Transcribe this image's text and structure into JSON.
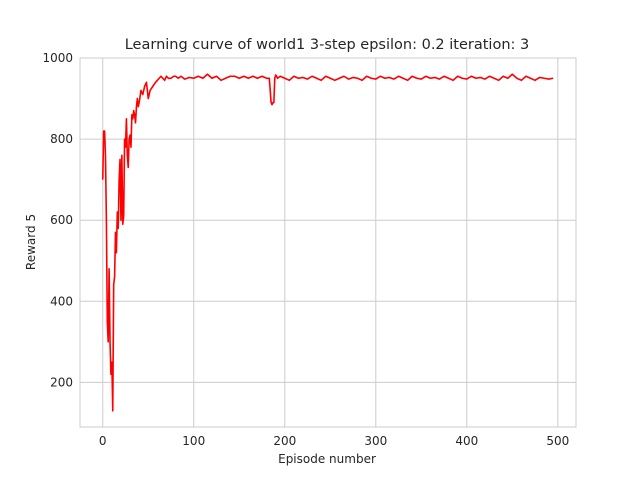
{
  "chart_data": {
    "type": "line",
    "title": "Learning curve of world1 3-step epsilon: 0.2 iteration: 3",
    "xlabel": "Episode number",
    "ylabel": "Reward 5",
    "xlim": [
      -25,
      520
    ],
    "ylim": [
      90,
      1000
    ],
    "xticks": [
      0,
      100,
      200,
      300,
      400,
      500
    ],
    "yticks": [
      200,
      400,
      600,
      800,
      1000
    ],
    "grid": true,
    "series": [
      {
        "color": "#ff0000",
        "x": [
          0,
          1,
          2,
          3,
          4,
          5,
          6,
          7,
          8,
          9,
          10,
          11,
          12,
          13,
          14,
          15,
          16,
          17,
          18,
          19,
          20,
          21,
          22,
          23,
          24,
          25,
          26,
          27,
          28,
          29,
          30,
          31,
          32,
          33,
          34,
          35,
          36,
          37,
          38,
          39,
          40,
          42,
          44,
          46,
          48,
          50,
          52,
          55,
          58,
          60,
          62,
          64,
          66,
          68,
          70,
          72,
          75,
          78,
          80,
          83,
          86,
          90,
          95,
          100,
          105,
          110,
          115,
          120,
          125,
          130,
          135,
          140,
          145,
          150,
          155,
          160,
          165,
          170,
          175,
          180,
          183,
          185,
          186,
          187,
          188,
          189,
          190,
          191,
          192,
          195,
          200,
          205,
          210,
          215,
          220,
          225,
          230,
          235,
          240,
          245,
          250,
          255,
          260,
          265,
          270,
          275,
          280,
          285,
          290,
          295,
          300,
          305,
          310,
          315,
          320,
          325,
          330,
          335,
          340,
          345,
          350,
          355,
          360,
          365,
          370,
          375,
          380,
          385,
          390,
          395,
          400,
          405,
          410,
          415,
          420,
          425,
          430,
          435,
          440,
          445,
          450,
          455,
          460,
          465,
          470,
          475,
          480,
          485,
          490,
          495
        ],
        "y": [
          700,
          820,
          820,
          760,
          600,
          350,
          300,
          480,
          300,
          220,
          250,
          130,
          440,
          460,
          570,
          520,
          620,
          580,
          700,
          750,
          600,
          760,
          590,
          610,
          800,
          780,
          850,
          760,
          730,
          800,
          810,
          780,
          860,
          850,
          870,
          860,
          840,
          880,
          900,
          880,
          890,
          920,
          910,
          930,
          940,
          900,
          920,
          930,
          940,
          945,
          950,
          955,
          950,
          945,
          955,
          950,
          950,
          955,
          955,
          950,
          955,
          948,
          952,
          950,
          955,
          950,
          960,
          950,
          955,
          945,
          950,
          955,
          955,
          950,
          955,
          950,
          955,
          950,
          955,
          950,
          950,
          890,
          885,
          890,
          890,
          950,
          958,
          955,
          950,
          955,
          950,
          945,
          955,
          950,
          952,
          948,
          955,
          950,
          945,
          955,
          950,
          945,
          950,
          955,
          948,
          952,
          950,
          945,
          955,
          950,
          948,
          955,
          950,
          952,
          948,
          955,
          950,
          945,
          955,
          950,
          948,
          955,
          950,
          952,
          948,
          955,
          950,
          945,
          955,
          950,
          948,
          955,
          950,
          952,
          948,
          955,
          950,
          945,
          955,
          950,
          960,
          950,
          945,
          955,
          950,
          945,
          952,
          950,
          948,
          950
        ]
      }
    ]
  }
}
